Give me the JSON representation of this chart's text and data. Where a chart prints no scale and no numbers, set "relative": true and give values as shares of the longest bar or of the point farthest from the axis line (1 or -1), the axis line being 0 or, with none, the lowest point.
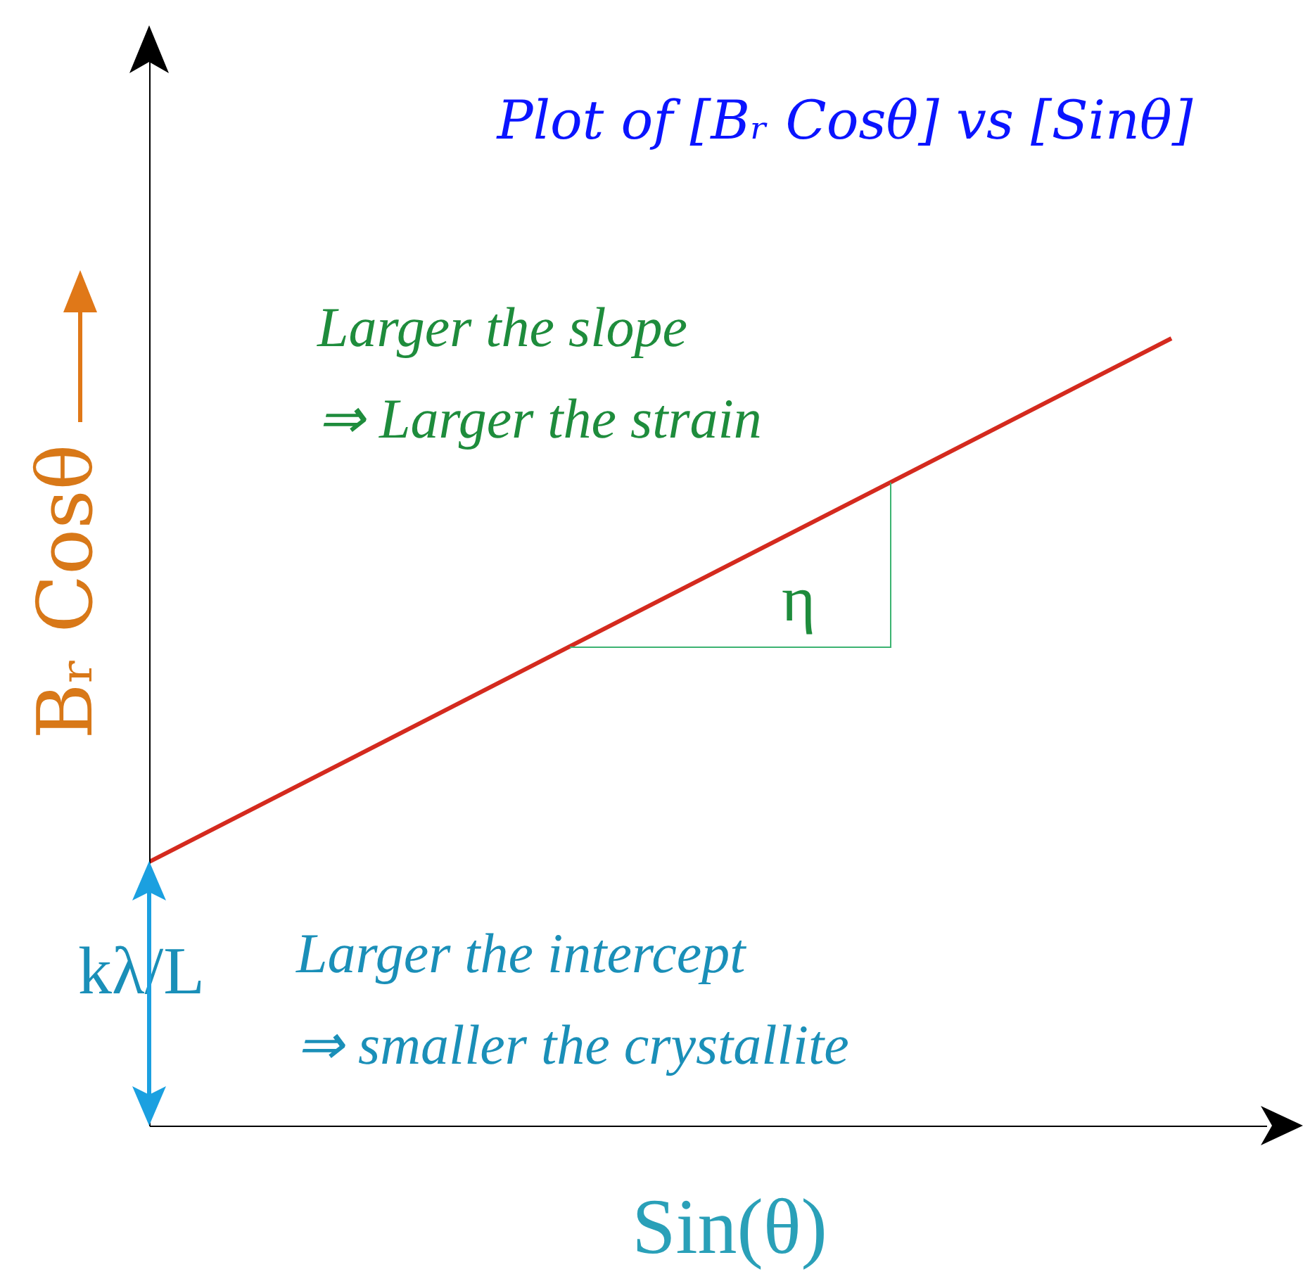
{
  "chart_data": {
    "type": "line",
    "relative": true,
    "categories": [
      null,
      null
    ],
    "series": [
      {
        "color": "#d42a1e",
        "values": [
          0.336,
          1
        ]
      }
    ],
    "title": "Plot of [Bᵣ Cosθ] vs [Sinθ]",
    "xlabel": "Sin(θ)",
    "ylabel": "Bᵣ Cosθ",
    "annotations": [
      "Larger the slope",
      "⇒ Larger the strain",
      "η",
      "kλ/L",
      "Larger the intercept",
      "⇒ smaller the crystallite"
    ],
    "marker": "none",
    "line_style": "solid"
  }
}
